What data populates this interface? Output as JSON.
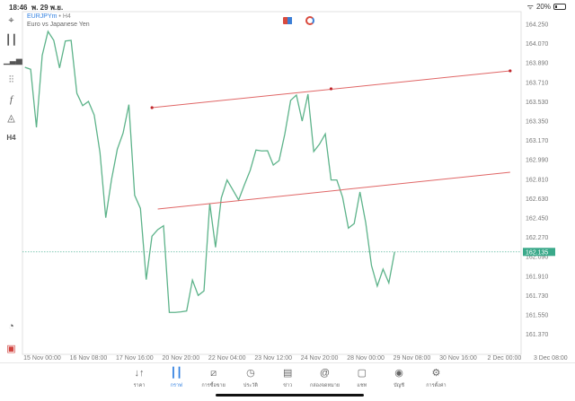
{
  "status": {
    "time": "18:46",
    "date": "พ. 29 พ.ย.",
    "battery": "20%",
    "battery_level": 0.2
  },
  "header": {
    "symbol": "EURJPYm",
    "separator": "•",
    "timeframe": "H4",
    "description": "Euro vs Japanese Yen"
  },
  "toolbar": {
    "items": [
      "crosshair-icon",
      "chart-type-icon",
      "indicators-icon",
      "settings-sliders-icon",
      "function-icon",
      "objects-icon",
      "timeframe"
    ],
    "timeframe_label": "H4",
    "bottom": [
      "chat-check-icon",
      "app-logo-icon"
    ]
  },
  "colors": {
    "line": "#5db38a",
    "trend": "#e06666",
    "trend_point": "#c0282d",
    "last_price_bg": "#3aa98a",
    "accent": "#2f7fe0"
  },
  "chart_data": {
    "type": "line",
    "symbol": "EURJPYm",
    "timeframe": "H4",
    "close": [
      163.85,
      163.831,
      163.292,
      163.961,
      164.183,
      164.1,
      163.844,
      164.094,
      164.1,
      163.608,
      163.494,
      163.533,
      163.406,
      163.058,
      162.453,
      162.808,
      163.089,
      163.239,
      163.503,
      162.661,
      162.539,
      161.878,
      162.281,
      162.342,
      162.378,
      161.573,
      161.573,
      161.578,
      161.586,
      161.873,
      161.731,
      161.773,
      162.586,
      162.178,
      162.636,
      162.803,
      162.711,
      162.617,
      162.758,
      162.892,
      163.081,
      163.073,
      163.075,
      162.942,
      162.983,
      163.231,
      163.542,
      163.592,
      163.35,
      163.6,
      163.067,
      163.136,
      163.231,
      162.803,
      162.803,
      162.642,
      162.356,
      162.398,
      162.692,
      162.406,
      162.008,
      161.817,
      161.975,
      161.847,
      162.135
    ],
    "last_price": "162.135",
    "ylim": [
      161.19,
      164.33
    ],
    "y_ticks": [
      "164.250",
      "164.070",
      "163.890",
      "163.710",
      "163.530",
      "163.350",
      "163.170",
      "162.990",
      "162.810",
      "162.630",
      "162.450",
      "162.270",
      "162.090",
      "161.910",
      "161.730",
      "161.550",
      "161.370"
    ],
    "x_ticks": [
      {
        "bar": 3,
        "label": "15 Nov 00:00"
      },
      {
        "bar": 11,
        "label": "16 Nov 08:00"
      },
      {
        "bar": 19,
        "label": "17 Nov 16:00"
      },
      {
        "bar": 27,
        "label": "20 Nov 20:00"
      },
      {
        "bar": 35,
        "label": "22 Nov 04:00"
      },
      {
        "bar": 43,
        "label": "23 Nov 12:00"
      },
      {
        "bar": 51,
        "label": "24 Nov 20:00"
      },
      {
        "bar": 59,
        "label": "28 Nov 00:00"
      },
      {
        "bar": 67,
        "label": "29 Nov 08:00"
      },
      {
        "bar": 75,
        "label": "30 Nov 16:00"
      },
      {
        "bar": 83,
        "label": "2 Dec 00:00"
      },
      {
        "bar": 91,
        "label": "3 Dec 08:00"
      }
    ],
    "trendlines": [
      {
        "start": {
          "bar": 22,
          "price": 163.475
        },
        "end": {
          "bar": 84,
          "price": 163.817
        },
        "mid": {
          "bar": 53,
          "price": 163.65
        }
      },
      {
        "start": {
          "bar": 23,
          "price": 162.533
        },
        "end": {
          "bar": 84,
          "price": 162.875
        }
      }
    ]
  },
  "nav": [
    {
      "label": "ราคา",
      "icon": "quotes-icon",
      "glyph": "↓↑"
    },
    {
      "label": "กราฟ",
      "icon": "chart-icon",
      "glyph": "┃┃",
      "active": true
    },
    {
      "label": "การซื้อขาย",
      "icon": "trade-icon",
      "glyph": "⧄"
    },
    {
      "label": "ประวัติ",
      "icon": "history-icon",
      "glyph": "◷"
    },
    {
      "label": "ข่าว",
      "icon": "news-icon",
      "glyph": "▤"
    },
    {
      "label": "กล่องจดหมาย",
      "icon": "mailbox-icon",
      "glyph": "@"
    },
    {
      "label": "แชท",
      "icon": "chat-icon",
      "glyph": "▢"
    },
    {
      "label": "บัญชี",
      "icon": "account-icon",
      "glyph": "◉"
    },
    {
      "label": "การตั้งค่า",
      "icon": "settings-icon",
      "glyph": "⚙"
    }
  ]
}
